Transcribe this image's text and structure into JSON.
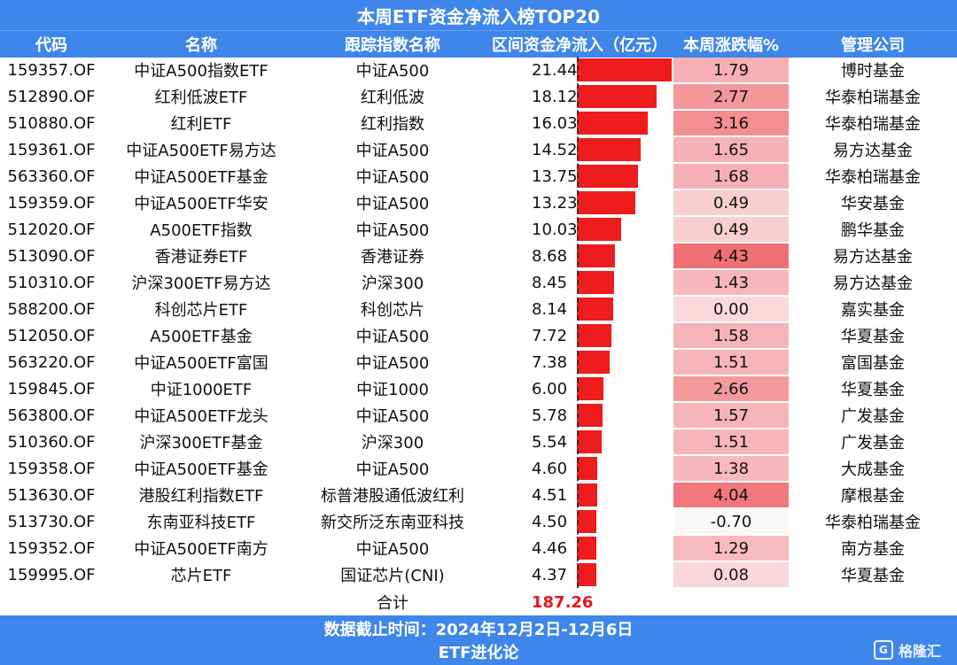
{
  "title": "本周ETF资金净流入榜TOP20",
  "headers": {
    "code": "代码",
    "name": "名称",
    "index": "跟踪指数名称",
    "flow": "区间资金净流入（亿元）",
    "change": "本周涨跌幅%",
    "manager": "管理公司"
  },
  "rows": [
    {
      "code": "159357.OF",
      "name": "中证A500指数ETF",
      "index": "中证A500",
      "flow": "21.44",
      "change": "1.79",
      "manager": "博时基金"
    },
    {
      "code": "512890.OF",
      "name": "红利低波ETF",
      "index": "红利低波",
      "flow": "18.12",
      "change": "2.77",
      "manager": "华泰柏瑞基金"
    },
    {
      "code": "510880.OF",
      "name": "红利ETF",
      "index": "红利指数",
      "flow": "16.03",
      "change": "3.16",
      "manager": "华泰柏瑞基金"
    },
    {
      "code": "159361.OF",
      "name": "中证A500ETF易方达",
      "index": "中证A500",
      "flow": "14.52",
      "change": "1.65",
      "manager": "易方达基金"
    },
    {
      "code": "563360.OF",
      "name": "中证A500ETF基金",
      "index": "中证A500",
      "flow": "13.75",
      "change": "1.68",
      "manager": "华泰柏瑞基金"
    },
    {
      "code": "159359.OF",
      "name": "中证A500ETF华安",
      "index": "中证A500",
      "flow": "13.23",
      "change": "0.49",
      "manager": "华安基金"
    },
    {
      "code": "512020.OF",
      "name": "A500ETF指数",
      "index": "中证A500",
      "flow": "10.03",
      "change": "0.49",
      "manager": "鹏华基金"
    },
    {
      "code": "513090.OF",
      "name": "香港证券ETF",
      "index": "香港证券",
      "flow": "8.68",
      "change": "4.43",
      "manager": "易方达基金"
    },
    {
      "code": "510310.OF",
      "name": "沪深300ETF易方达",
      "index": "沪深300",
      "flow": "8.45",
      "change": "1.43",
      "manager": "易方达基金"
    },
    {
      "code": "588200.OF",
      "name": "科创芯片ETF",
      "index": "科创芯片",
      "flow": "8.14",
      "change": "0.00",
      "manager": "嘉实基金"
    },
    {
      "code": "512050.OF",
      "name": "A500ETF基金",
      "index": "中证A500",
      "flow": "7.72",
      "change": "1.58",
      "manager": "华夏基金"
    },
    {
      "code": "563220.OF",
      "name": "中证A500ETF富国",
      "index": "中证A500",
      "flow": "7.38",
      "change": "1.51",
      "manager": "富国基金"
    },
    {
      "code": "159845.OF",
      "name": "中证1000ETF",
      "index": "中证1000",
      "flow": "6.00",
      "change": "2.66",
      "manager": "华夏基金"
    },
    {
      "code": "563800.OF",
      "name": "中证A500ETF龙头",
      "index": "中证A500",
      "flow": "5.78",
      "change": "1.57",
      "manager": "广发基金"
    },
    {
      "code": "510360.OF",
      "name": "沪深300ETF基金",
      "index": "沪深300",
      "flow": "5.54",
      "change": "1.51",
      "manager": "广发基金"
    },
    {
      "code": "159358.OF",
      "name": "中证A500ETF基金",
      "index": "中证A500",
      "flow": "4.60",
      "change": "1.38",
      "manager": "大成基金"
    },
    {
      "code": "513630.OF",
      "name": "港股红利指数ETF",
      "index": "标普港股通低波红利",
      "flow": "4.51",
      "change": "4.04",
      "manager": "摩根基金"
    },
    {
      "code": "513730.OF",
      "name": "东南亚科技ETF",
      "index": "新交所泛东南亚科技",
      "flow": "4.50",
      "change": "-0.70",
      "manager": "华泰柏瑞基金"
    },
    {
      "code": "159352.OF",
      "name": "中证A500ETF南方",
      "index": "中证A500",
      "flow": "4.46",
      "change": "1.29",
      "manager": "南方基金"
    },
    {
      "code": "159995.OF",
      "name": "芯片ETF",
      "index": "国证芯片(CNI)",
      "flow": "4.37",
      "change": "0.08",
      "manager": "华夏基金"
    }
  ],
  "total": {
    "label": "合计",
    "value": "187.26"
  },
  "footer": {
    "date_range": "数据截止时间：2024年12月2日-12月6日",
    "source": "ETF进化论",
    "brand": "格隆汇"
  },
  "colors": {
    "header_bg": "#3f86ea",
    "bar": "#ee1c1c",
    "total_value": "#e3161b"
  }
}
